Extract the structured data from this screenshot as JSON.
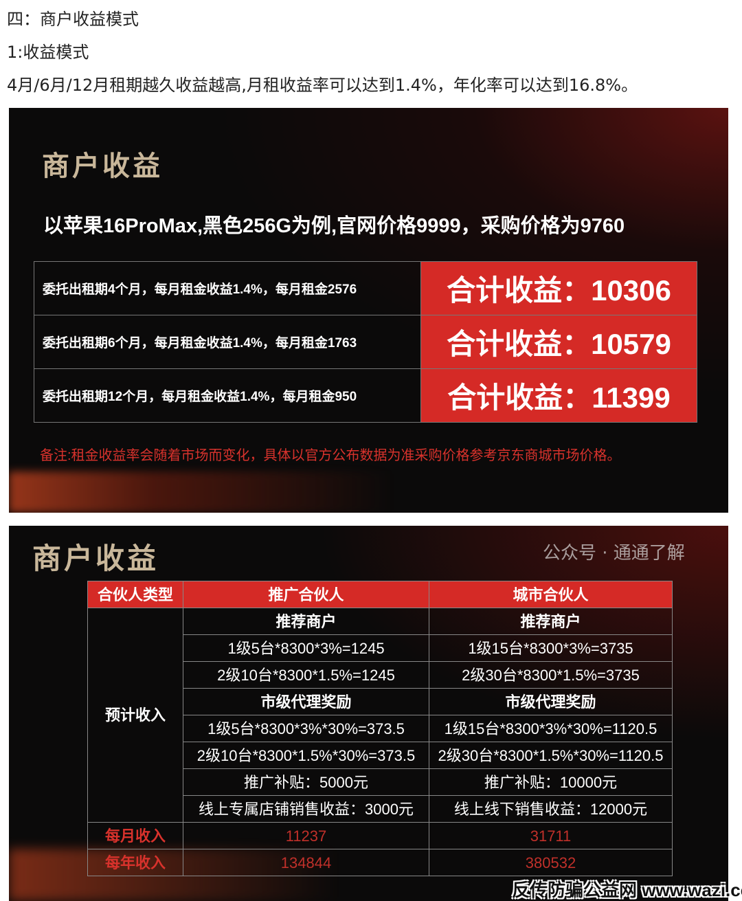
{
  "intro": {
    "heading": "四：商户收益模式",
    "subheading": "1:收益模式",
    "text": "4月/6月/12月租期越久收益越高,月租收益率可以达到1.4%，年化率可以达到16.8%。"
  },
  "panel1": {
    "title": "商户收益",
    "subtitle": "以苹果16ProMax,黑色256G为例,官网价格9999，采购价格为9760",
    "rows": [
      {
        "desc": "委托出租期4个月，每月租金收益1.4%，每月租金2576",
        "total": "合计收益：10306"
      },
      {
        "desc": "委托出租期6个月，每月租金收益1.4%，每月租金1763",
        "total": "合计收益：10579"
      },
      {
        "desc": "委托出租期12个月，每月租金收益1.4%，每月租金950",
        "total": "合计收益：11399"
      }
    ],
    "note": "备注:租金收益率会随着市场而变化，具体以官方公布数据为准采购价格参考京东商城市场价格。"
  },
  "panel2": {
    "title": "商户收益",
    "headers": [
      "合伙人类型",
      "推广合伙人",
      "城市合伙人"
    ],
    "row_label": "预计收入",
    "rows": [
      [
        "推荐商户",
        "推荐商户"
      ],
      [
        "1级5台*8300*3%=1245",
        "1级15台*8300*3%=3735"
      ],
      [
        "2级10台*8300*1.5%=1245",
        "2级30台*8300*1.5%=3735"
      ],
      [
        "市级代理奖励",
        "市级代理奖励"
      ],
      [
        "1级5台*8300*3%*30%=373.5",
        "1级15台*8300*3%*30%=1120.5"
      ],
      [
        "2级10台*8300*1.5%*30%=373.5",
        "2级30台*8300*1.5%*30%=1120.5"
      ],
      [
        "推广补贴：5000元",
        "推广补贴：10000元"
      ],
      [
        "线上专属店铺销售收益：3000元",
        "线上线下销售收益：12000元"
      ]
    ],
    "monthly": {
      "label": "每月收入",
      "values": [
        "11237",
        "31711"
      ]
    },
    "yearly": {
      "label": "每年收入",
      "values": [
        "134844",
        "380532"
      ]
    }
  },
  "watermark": {
    "account": "公众号 · 通通了解",
    "site": "反传防骗公益网 www.wazi.cc"
  },
  "colors": {
    "accent_red": "#d52a26",
    "background": "#0b0a0a",
    "title_gold": "#c9b79a"
  }
}
